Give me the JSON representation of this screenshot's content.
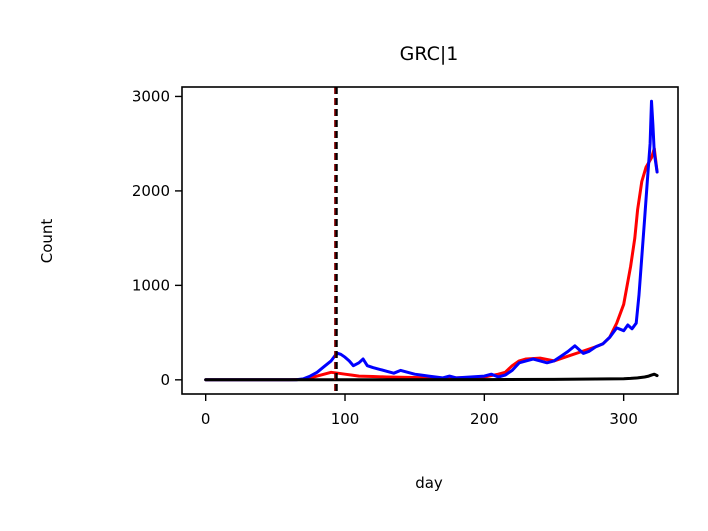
{
  "chart_data": {
    "type": "line",
    "title": "GRC|1",
    "xlabel": "day",
    "ylabel": "Count",
    "xlim": [
      -17,
      339
    ],
    "ylim": [
      -150,
      3100
    ],
    "xticks": [
      0,
      100,
      200,
      300
    ],
    "yticks": [
      0,
      1000,
      2000,
      3000
    ],
    "grid": false,
    "legend": "none",
    "vlines": [
      {
        "x": 93,
        "color": "#8b0000",
        "style": "dashed"
      },
      {
        "x": 94,
        "color": "#000000",
        "style": "dashed"
      }
    ],
    "series": [
      {
        "color": "#ff0000",
        "x": [
          0,
          60,
          70,
          75,
          80,
          85,
          90,
          95,
          100,
          105,
          110,
          120,
          130,
          140,
          150,
          160,
          170,
          180,
          190,
          200,
          210,
          215,
          220,
          225,
          230,
          240,
          250,
          260,
          270,
          280,
          285,
          290,
          295,
          300,
          305,
          308,
          310,
          313,
          316,
          318,
          320,
          322,
          324
        ],
        "y": [
          0,
          0,
          5,
          20,
          40,
          60,
          80,
          70,
          60,
          50,
          40,
          35,
          30,
          28,
          25,
          20,
          18,
          20,
          25,
          30,
          60,
          80,
          150,
          200,
          220,
          230,
          200,
          250,
          300,
          350,
          380,
          450,
          600,
          800,
          1200,
          1500,
          1800,
          2100,
          2250,
          2300,
          2350,
          2450,
          2200
        ]
      },
      {
        "color": "#0000ff",
        "x": [
          0,
          65,
          70,
          75,
          80,
          85,
          90,
          93,
          95,
          97,
          100,
          103,
          106,
          110,
          113,
          116,
          120,
          125,
          130,
          135,
          140,
          145,
          150,
          155,
          160,
          165,
          170,
          175,
          180,
          190,
          200,
          205,
          210,
          215,
          220,
          225,
          230,
          235,
          240,
          245,
          250,
          255,
          260,
          265,
          268,
          271,
          275,
          280,
          285,
          290,
          295,
          300,
          303,
          306,
          309,
          311,
          313,
          315,
          317,
          319,
          320,
          321,
          322,
          324
        ],
        "y": [
          0,
          0,
          10,
          40,
          80,
          140,
          200,
          260,
          280,
          270,
          240,
          200,
          150,
          180,
          220,
          150,
          130,
          110,
          90,
          70,
          100,
          80,
          60,
          50,
          40,
          30,
          20,
          40,
          20,
          30,
          40,
          60,
          30,
          50,
          100,
          180,
          200,
          220,
          200,
          180,
          200,
          250,
          300,
          360,
          320,
          280,
          300,
          350,
          380,
          450,
          550,
          520,
          580,
          540,
          600,
          900,
          1300,
          1700,
          2100,
          2500,
          2950,
          2700,
          2400,
          2200
        ]
      },
      {
        "color": "#000000",
        "x": [
          0,
          100,
          200,
          250,
          290,
          300,
          305,
          310,
          315,
          318,
          320,
          322,
          324
        ],
        "y": [
          0,
          0,
          2,
          5,
          10,
          12,
          15,
          20,
          30,
          40,
          50,
          60,
          45
        ]
      }
    ]
  }
}
